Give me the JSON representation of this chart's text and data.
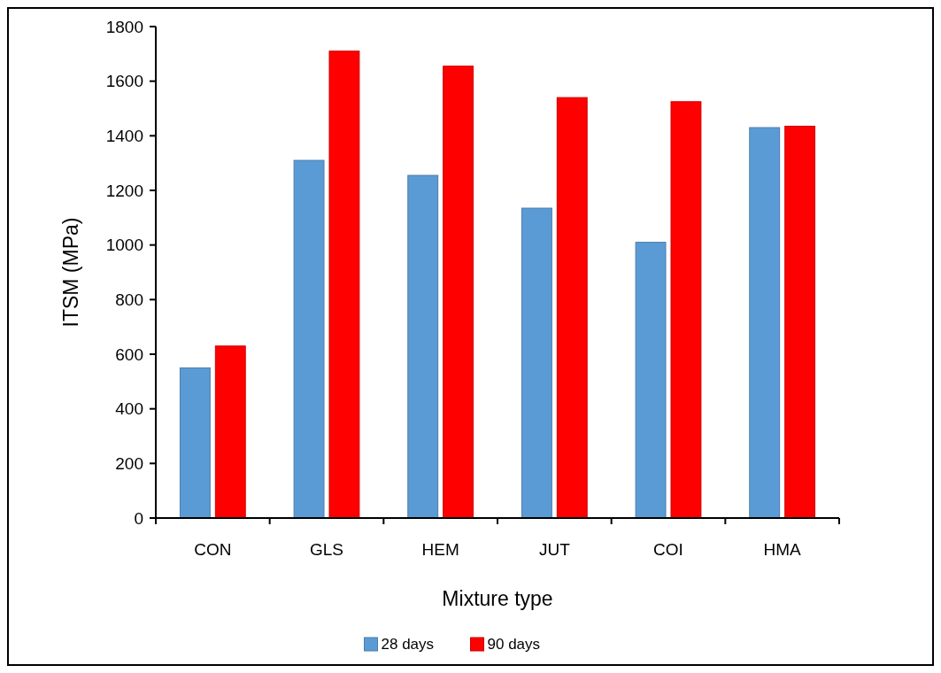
{
  "chart_data": {
    "type": "bar",
    "xlabel": "Mixture type",
    "ylabel": "ITSM (MPa)",
    "categories": [
      "CON",
      "GLS",
      "HEM",
      "JUT",
      "COI",
      "HMA"
    ],
    "series": [
      {
        "name": "28 days",
        "color": "#5b9bd5",
        "values": [
          550,
          1310,
          1255,
          1135,
          1010,
          1430
        ]
      },
      {
        "name": "90 days",
        "color": "#ff0000",
        "values": [
          630,
          1710,
          1655,
          1540,
          1525,
          1435
        ]
      }
    ],
    "ylim": [
      0,
      1800
    ],
    "yticks": [
      0,
      200,
      400,
      600,
      800,
      1000,
      1200,
      1400,
      1600,
      1800
    ],
    "grid": false,
    "legend": "bottom"
  }
}
